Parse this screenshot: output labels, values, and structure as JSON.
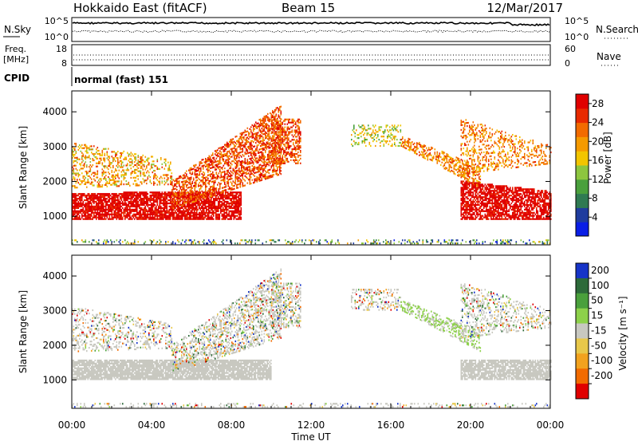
{
  "header": {
    "station": "Hokkaido East (fitACF)",
    "beam": "Beam 15",
    "date": "12/Mar/2017"
  },
  "noise_panel": {
    "left_label": "N.Sky",
    "right_label": "N.Search",
    "left_ticks": [
      "10^5",
      "10^0"
    ],
    "right_ticks": [
      "10^5",
      "10^0"
    ]
  },
  "freq_panel": {
    "left_label_top": "Freq.",
    "left_label_unit": "[MHz]",
    "right_label": "Nave",
    "left_ticks": [
      "18",
      "8"
    ],
    "right_ticks": [
      "60",
      "0"
    ]
  },
  "cpid_panel": {
    "label": "CPID",
    "value": "normal (fast) 151"
  },
  "colors": {
    "power_scale": [
      "#0a1ee6",
      "#1f3c9e",
      "#2f7a52",
      "#4aa03c",
      "#8dc63f",
      "#f2c500",
      "#f59a00",
      "#f26b00",
      "#e82a00",
      "#e00000"
    ],
    "velocity_scale": [
      "#1634c8",
      "#2d6a3a",
      "#4aa03c",
      "#8dd14a",
      "#c8c8c0",
      "#e8c84a",
      "#f2a21e",
      "#f26b00",
      "#e00000"
    ]
  },
  "chart_data": [
    {
      "type": "heatmap",
      "name": "power",
      "ylabel": "Slant Range [km]",
      "x_ticks": [
        "00:00",
        "04:00",
        "08:00",
        "12:00",
        "16:00",
        "20:00",
        "00:00"
      ],
      "xlim_hours": [
        0,
        24
      ],
      "y_ticks": [
        1000,
        2000,
        3000,
        4000
      ],
      "ylim": [
        180,
        4600
      ],
      "colorbar_label": "Power [dB]",
      "colorbar_ticks": [
        4,
        8,
        12,
        16,
        20,
        24,
        28
      ],
      "colorbar_range": [
        0,
        30
      ]
    },
    {
      "type": "heatmap",
      "name": "velocity",
      "ylabel": "Slant Range [km]",
      "xlabel": "Time UT",
      "x_ticks": [
        "00:00",
        "04:00",
        "08:00",
        "12:00",
        "16:00",
        "20:00",
        "00:00"
      ],
      "xlim_hours": [
        0,
        24
      ],
      "y_ticks": [
        1000,
        2000,
        3000,
        4000
      ],
      "ylim": [
        180,
        4600
      ],
      "colorbar_label": "Velocity [m s⁻¹]",
      "colorbar_ticks": [
        200,
        100,
        50,
        15,
        -15,
        -50,
        -100,
        -200
      ]
    }
  ]
}
